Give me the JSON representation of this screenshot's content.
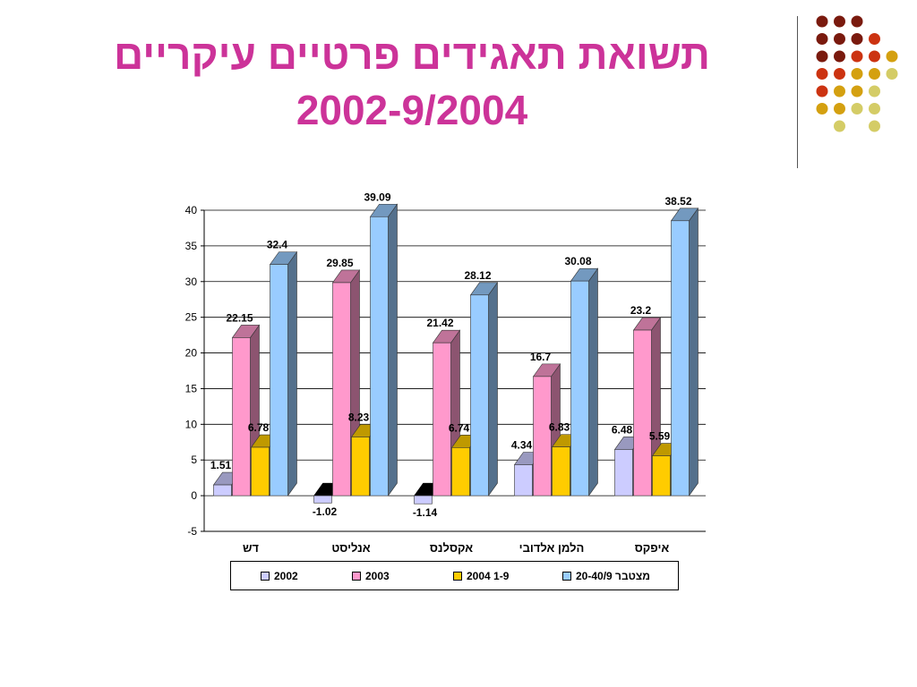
{
  "title": {
    "line1": "תשואת תאגידים פרטיים עיקריים",
    "line2": "2002-9/2004"
  },
  "colors": {
    "title": "#cc3399",
    "series": [
      "#ccccff",
      "#ff99cc",
      "#ffcc00",
      "#99ccff"
    ],
    "dots": [
      "#7a1a0e",
      "#cc3311",
      "#d4a010",
      "#d4cc66"
    ]
  },
  "decoration": {
    "dot_rows": [
      [
        "#7a1a0e",
        "#7a1a0e",
        "#7a1a0e"
      ],
      [
        "#7a1a0e",
        "#7a1a0e",
        "#7a1a0e",
        "#cc3311"
      ],
      [
        "#7a1a0e",
        "#7a1a0e",
        "#cc3311",
        "#cc3311",
        "#d4a010"
      ],
      [
        "#cc3311",
        "#cc3311",
        "#d4a010",
        "#d4a010",
        "#d4cc66"
      ],
      [
        "#cc3311",
        "#d4a010",
        "#d4a010",
        "#d4cc66"
      ],
      [
        "#d4a010",
        "#d4a010",
        "#d4cc66",
        "#d4cc66"
      ],
      [
        "#d4cc66",
        "#d4cc66"
      ]
    ]
  },
  "chart_data": {
    "type": "bar",
    "title": "",
    "xlabel": "",
    "ylabel": "",
    "ylim": [
      -5,
      40
    ],
    "yticks": [
      -5,
      0,
      5,
      10,
      15,
      20,
      25,
      30,
      35,
      40
    ],
    "grid": true,
    "legend_position": "bottom",
    "categories": [
      "דש",
      "אנליסט",
      "אקסלנס",
      "הלמן אלדובי",
      "איפקס"
    ],
    "series": [
      {
        "name": "2002",
        "values": [
          1.51,
          -1.02,
          -1.14,
          4.34,
          6.48
        ],
        "labels": [
          "1.51",
          "-1.02",
          "-1.14",
          "4.34",
          "6.48"
        ]
      },
      {
        "name": "2003",
        "values": [
          22.15,
          29.85,
          21.42,
          16.7,
          23.2
        ],
        "labels": [
          "22.15",
          "29.85",
          "21.42",
          "16.7",
          "23.2"
        ]
      },
      {
        "name": "2004 1-9",
        "values": [
          6.78,
          8.23,
          6.74,
          6.83,
          5.59
        ],
        "labels": [
          "6.78",
          "8.23",
          "6.74",
          "6.83",
          "5.59"
        ]
      },
      {
        "name": "מצטבר 20-40/9",
        "values": [
          32.4,
          39.09,
          28.12,
          30.08,
          38.52
        ],
        "labels": [
          "32.4",
          "39.09",
          "28.12",
          "30.08",
          "38.52"
        ]
      }
    ]
  }
}
